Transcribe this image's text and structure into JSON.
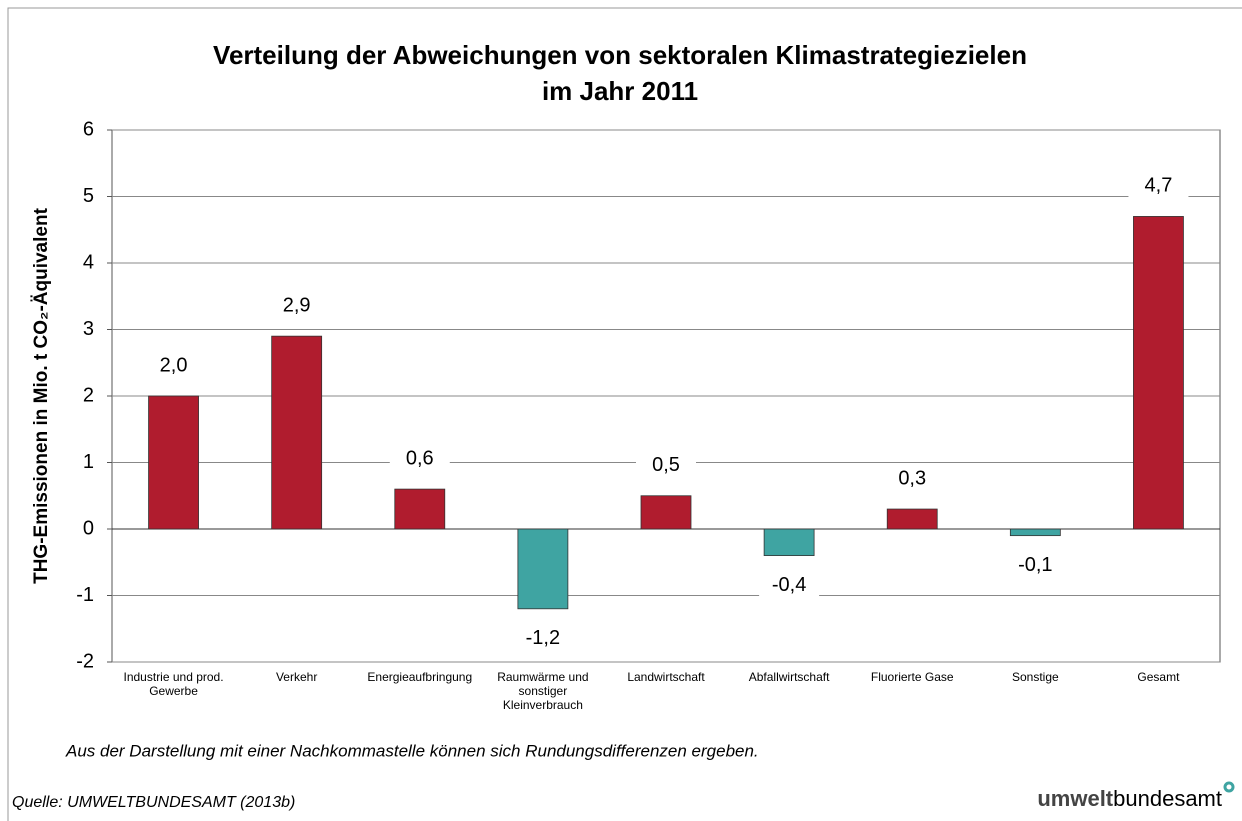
{
  "chart_data": {
    "type": "bar",
    "title": [
      "Verteilung der Abweichungen von sektoralen Klimastrategiezielen",
      "im Jahr 2011"
    ],
    "y_label": "THG-Emissionen in Mio. t CO₂-Äquivalent",
    "categories": [
      "Industrie und prod.\nGewerbe",
      "Verkehr",
      "Energieaufbringung",
      "Raumwärme und\nsonstiger\nKleinverbrauch",
      "Landwirtschaft",
      "Abfallwirtschaft",
      "Fluorierte Gase",
      "Sonstige",
      "Gesamt"
    ],
    "values": [
      2.0,
      2.9,
      0.6,
      -1.2,
      0.5,
      -0.4,
      0.3,
      -0.1,
      4.7
    ],
    "value_labels": [
      "2,0",
      "2,9",
      "0,6",
      "-1,2",
      "0,5",
      "-0,4",
      "0,3",
      "-0,1",
      "4,7"
    ],
    "positive_color": "#b01c2e",
    "negative_color": "#3fa4a2",
    "ylim": [
      -2,
      6
    ],
    "yticks": [
      -2,
      -1,
      0,
      1,
      2,
      3,
      4,
      5,
      6
    ],
    "grid": true,
    "note": "Aus der Darstellung mit einer Nachkommastelle können sich Rundungsdifferenzen ergeben.",
    "source": "Quelle: UMWELTBUNDESAMT (2013b)",
    "logo": {
      "bold": "umwelt",
      "regular": "bundesamt"
    }
  }
}
